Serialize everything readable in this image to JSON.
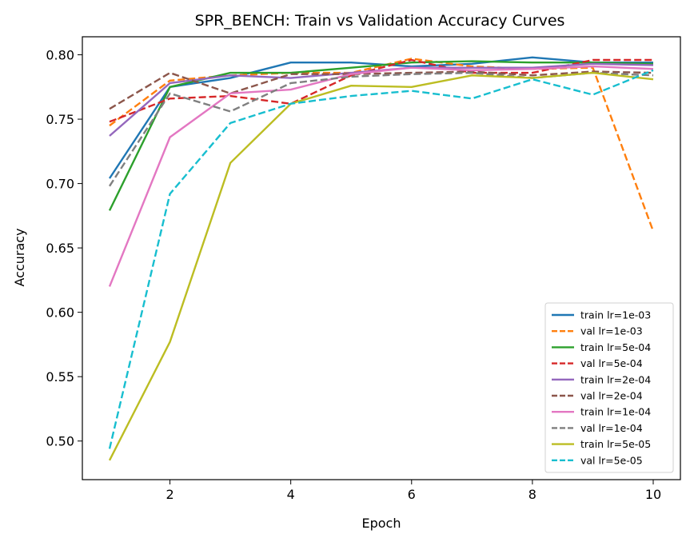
{
  "chart_data": {
    "type": "line",
    "title": "SPR_BENCH: Train vs Validation Accuracy Curves",
    "xlabel": "Epoch",
    "ylabel": "Accuracy",
    "xlim": [
      0.55,
      10.45
    ],
    "ylim": [
      0.47,
      0.814
    ],
    "xticks": [
      2,
      4,
      6,
      8,
      10
    ],
    "yticks": [
      0.5,
      0.55,
      0.6,
      0.65,
      0.7,
      0.75,
      0.8
    ],
    "ytick_labels": [
      "0.50",
      "0.55",
      "0.60",
      "0.65",
      "0.70",
      "0.75",
      "0.80"
    ],
    "grid": false,
    "legend_position": "lower-right",
    "x": [
      1,
      2,
      3,
      4,
      5,
      6,
      7,
      8,
      9,
      10
    ],
    "series": [
      {
        "name": "train lr=1e-03",
        "color": "#1f77b4",
        "dash": "solid",
        "values": [
          0.704,
          0.775,
          0.782,
          0.794,
          0.794,
          0.791,
          0.793,
          0.798,
          0.794,
          0.794
        ]
      },
      {
        "name": "val lr=1e-03",
        "color": "#ff7f0e",
        "dash": "dashed",
        "values": [
          0.745,
          0.78,
          0.784,
          0.786,
          0.786,
          0.797,
          0.791,
          0.789,
          0.79,
          0.663
        ]
      },
      {
        "name": "train lr=5e-04",
        "color": "#2ca02c",
        "dash": "solid",
        "values": [
          0.679,
          0.775,
          0.786,
          0.786,
          0.79,
          0.794,
          0.795,
          0.794,
          0.794,
          0.793
        ]
      },
      {
        "name": "val lr=5e-04",
        "color": "#d62728",
        "dash": "dashed",
        "values": [
          0.748,
          0.766,
          0.768,
          0.762,
          0.784,
          0.796,
          0.786,
          0.786,
          0.796,
          0.796
        ]
      },
      {
        "name": "train lr=2e-04",
        "color": "#9467bd",
        "dash": "solid",
        "values": [
          0.737,
          0.778,
          0.784,
          0.782,
          0.786,
          0.79,
          0.79,
          0.79,
          0.793,
          0.792
        ]
      },
      {
        "name": "val lr=2e-04",
        "color": "#8c564b",
        "dash": "dashed",
        "values": [
          0.758,
          0.786,
          0.77,
          0.785,
          0.785,
          0.786,
          0.787,
          0.784,
          0.787,
          0.786
        ]
      },
      {
        "name": "train lr=1e-04",
        "color": "#e377c2",
        "dash": "solid",
        "values": [
          0.62,
          0.736,
          0.77,
          0.773,
          0.785,
          0.79,
          0.788,
          0.789,
          0.791,
          0.789
        ]
      },
      {
        "name": "val lr=1e-04",
        "color": "#7f7f7f",
        "dash": "dashed",
        "values": [
          0.698,
          0.77,
          0.756,
          0.778,
          0.783,
          0.785,
          0.786,
          0.782,
          0.786,
          0.784
        ]
      },
      {
        "name": "train lr=5e-05",
        "color": "#bcbd22",
        "dash": "solid",
        "values": [
          0.485,
          0.577,
          0.716,
          0.762,
          0.776,
          0.775,
          0.784,
          0.782,
          0.786,
          0.781
        ]
      },
      {
        "name": "val lr=5e-05",
        "color": "#17becf",
        "dash": "dashed",
        "values": [
          0.494,
          0.692,
          0.747,
          0.762,
          0.768,
          0.772,
          0.766,
          0.781,
          0.769,
          0.788
        ]
      }
    ]
  }
}
